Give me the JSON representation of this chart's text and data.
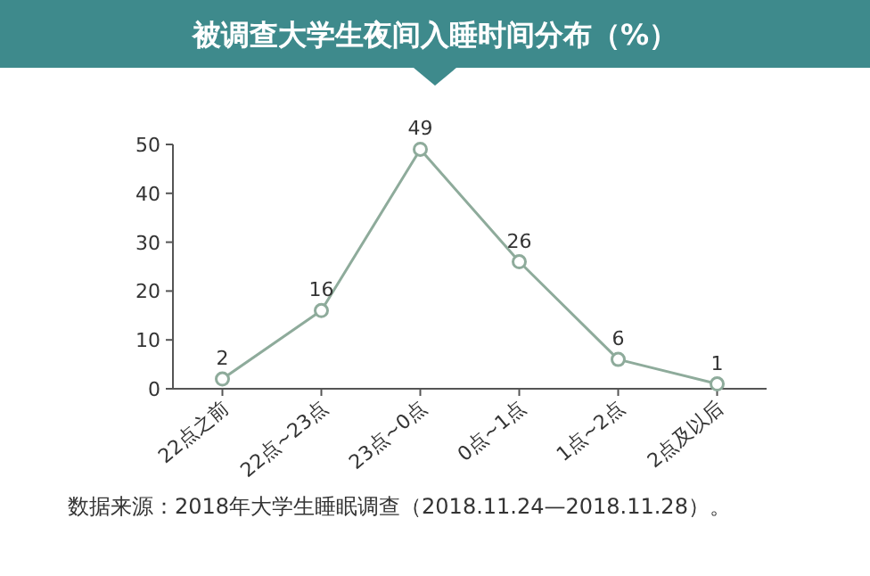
{
  "chart_data": {
    "type": "line",
    "title": "被调查大学生夜间入睡时间分布（%）",
    "categories": [
      "22点之前",
      "22点~23点",
      "23点~0点",
      "0点~1点",
      "1点~2点",
      "2点及以后"
    ],
    "values": [
      2,
      16,
      49,
      26,
      6,
      1
    ],
    "color": "#8eab9b",
    "ylim": [
      0,
      50
    ],
    "yticks": [
      0,
      10,
      20,
      30,
      40,
      50
    ],
    "data_labels": true,
    "marker": "circle",
    "grid": false,
    "annotations": [
      "数据来源：2018年大学生睡眠调查（2018.11.24—2018.11.28）。"
    ]
  }
}
